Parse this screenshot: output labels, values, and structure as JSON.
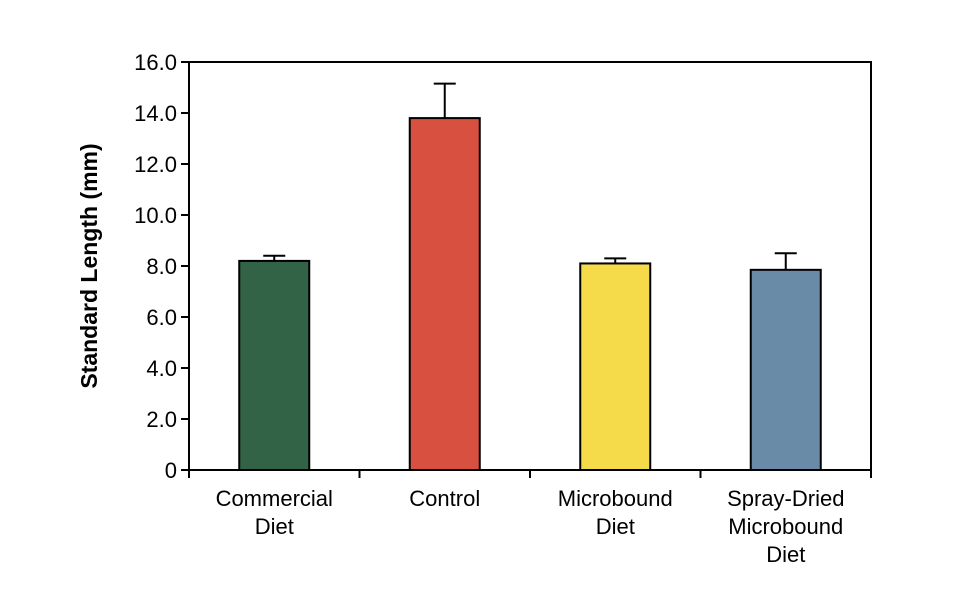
{
  "chart_data": {
    "type": "bar",
    "title": "",
    "xlabel": "",
    "ylabel": "Standard Length (mm)",
    "ylim": [
      0,
      16
    ],
    "yticks": [
      0,
      2,
      4,
      6,
      8,
      10,
      12,
      14,
      16
    ],
    "ytick_labels": [
      "0",
      "2.0",
      "4.0",
      "6.0",
      "8.0",
      "10.0",
      "12.0",
      "14.0",
      "16.0"
    ],
    "categories": [
      [
        "Commercial",
        "Diet"
      ],
      [
        "Control"
      ],
      [
        "Microbound",
        "Diet"
      ],
      [
        "Spray-Dried",
        "Microbound",
        "Diet"
      ]
    ],
    "values": [
      8.2,
      13.8,
      8.1,
      7.85
    ],
    "errors": [
      0.2,
      1.35,
      0.2,
      0.65
    ],
    "colors": [
      "#336347",
      "#d85040",
      "#f5db4a",
      "#6a8ba8"
    ],
    "grid": false,
    "legend": "none"
  }
}
